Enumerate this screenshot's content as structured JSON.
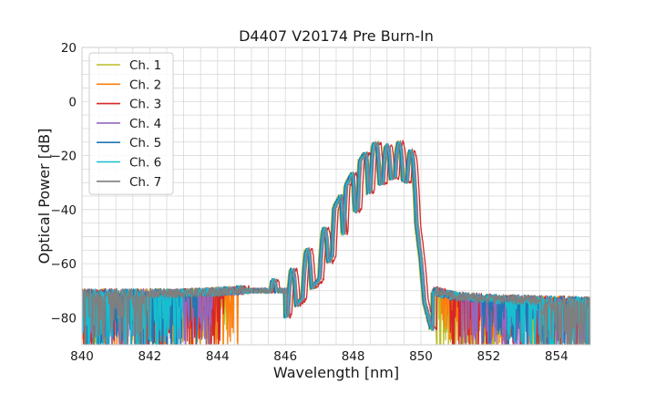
{
  "chart_data": {
    "type": "line",
    "title": "D4407 V20174 Pre Burn-In",
    "xlabel": "Wavelength [nm]",
    "ylabel": "Optical Power [dB]",
    "xlim": [
      840,
      855
    ],
    "ylim": [
      -90,
      20
    ],
    "x_ticks": [
      840,
      842,
      844,
      846,
      848,
      850,
      852,
      854
    ],
    "y_ticks": [
      20,
      0,
      -20,
      -40,
      -60,
      -80
    ],
    "grid": true,
    "legend_position": "top-left",
    "series": [
      {
        "name": "Ch. 1",
        "color": "#bcbd22",
        "shift": -0.06,
        "floor_lo": 844.3,
        "floor_hi": 850.4
      },
      {
        "name": "Ch. 2",
        "color": "#ff7f0e",
        "shift": -0.02,
        "floor_lo": 844.6,
        "floor_hi": 850.6
      },
      {
        "name": "Ch. 3",
        "color": "#d62728",
        "shift": 0.12,
        "floor_lo": 844.2,
        "floor_hi": 850.8
      },
      {
        "name": "Ch. 4",
        "color": "#9467bd",
        "shift": 0.02,
        "floor_lo": 843.9,
        "floor_hi": 851.2
      },
      {
        "name": "Ch. 5",
        "color": "#1f77b4",
        "shift": -0.04,
        "floor_lo": 843.4,
        "floor_hi": 851.8
      },
      {
        "name": "Ch. 6",
        "color": "#17becf",
        "shift": 0.0,
        "floor_lo": 843.0,
        "floor_hi": 852.5
      },
      {
        "name": "Ch. 7",
        "color": "#7f7f7f",
        "shift": 0.05,
        "floor_lo": 842.0,
        "floor_hi": 853.5
      }
    ],
    "envelope": {
      "x": [
        840,
        843,
        844.5,
        845.5,
        846.0,
        846.5,
        847.0,
        847.5,
        848.0,
        848.3,
        848.6,
        849.0,
        849.3,
        849.6,
        849.8,
        850.0,
        850.1,
        850.3,
        851,
        852,
        855
      ],
      "y": [
        -71,
        -71,
        -70,
        -69,
        -66,
        -59,
        -52,
        -40,
        -28,
        -22,
        -18,
        -15,
        -14,
        -16,
        -24,
        -45,
        -60,
        -70,
        -72,
        -73,
        -74
      ]
    },
    "peaks": [
      {
        "x": 845.65,
        "y": -65
      },
      {
        "x": 846.2,
        "y": -62
      },
      {
        "x": 846.65,
        "y": -54
      },
      {
        "x": 847.15,
        "y": -47
      },
      {
        "x": 847.55,
        "y": -28
      },
      {
        "x": 847.9,
        "y": -19
      },
      {
        "x": 848.3,
        "y": -13
      },
      {
        "x": 848.65,
        "y": -13
      },
      {
        "x": 849.0,
        "y": -16
      },
      {
        "x": 849.35,
        "y": -15
      },
      {
        "x": 849.7,
        "y": -18
      }
    ]
  }
}
